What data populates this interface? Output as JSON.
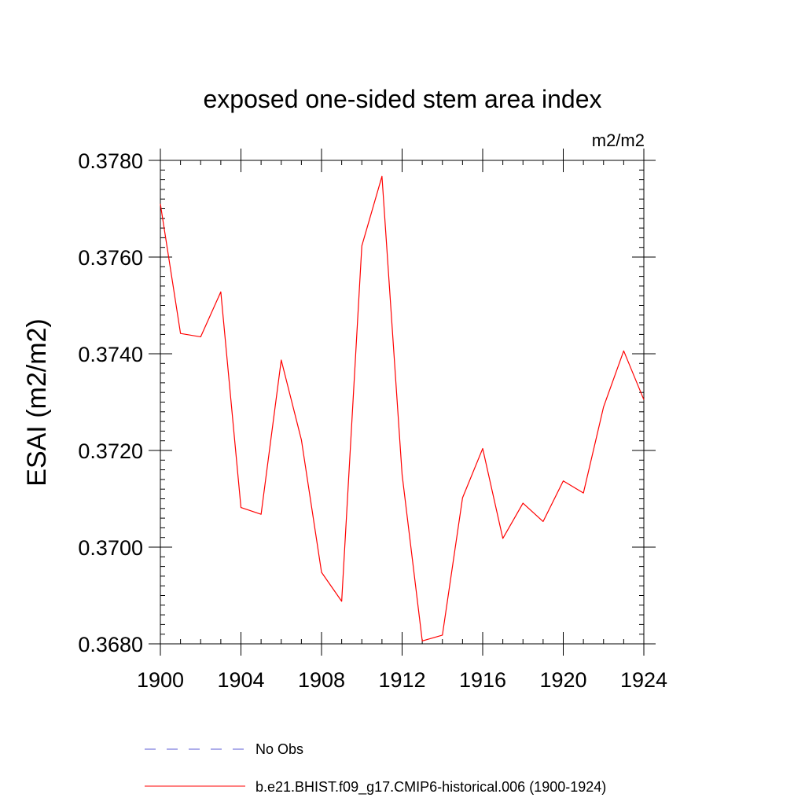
{
  "chart_data": {
    "type": "line",
    "title": "exposed one-sided stem area index",
    "units_label": "m2/m2",
    "ylabel": "ESAI  (m2/m2)",
    "xlabel": "",
    "xlim": [
      1900,
      1924
    ],
    "ylim": [
      0.368,
      0.378
    ],
    "x_ticks": [
      1900,
      1904,
      1908,
      1912,
      1916,
      1920,
      1924
    ],
    "y_ticks": [
      0.368,
      0.37,
      0.372,
      0.374,
      0.376,
      0.378
    ],
    "x_tick_labels": [
      "1900",
      "1904",
      "1908",
      "1912",
      "1916",
      "1920",
      "1924"
    ],
    "y_tick_labels": [
      "0.3680",
      "0.3700",
      "0.3720",
      "0.3740",
      "0.3760",
      "0.3780"
    ],
    "x_minor_step": 1,
    "y_minor_step": 0.0002,
    "series": [
      {
        "name": "b.e21.BHIST.f09_g17.CMIP6-historical.006 (1900-1924)",
        "color": "#ff0000",
        "style": "solid",
        "x": [
          1900,
          1901,
          1902,
          1903,
          1904,
          1905,
          1906,
          1907,
          1908,
          1909,
          1910,
          1911,
          1912,
          1913,
          1914,
          1915,
          1916,
          1917,
          1918,
          1919,
          1920,
          1921,
          1922,
          1923,
          1924
        ],
        "values": [
          0.3771,
          0.37442,
          0.37435,
          0.37528,
          0.37082,
          0.37068,
          0.37387,
          0.37222,
          0.36948,
          0.36888,
          0.37623,
          0.37767,
          0.3715,
          0.36806,
          0.36818,
          0.37102,
          0.37204,
          0.37018,
          0.37091,
          0.37053,
          0.37137,
          0.37112,
          0.3729,
          0.37406,
          0.37305
        ]
      }
    ],
    "legend": [
      {
        "label": "No Obs",
        "color": "#5b5bd6",
        "style": "dashed"
      },
      {
        "label": "b.e21.BHIST.f09_g17.CMIP6-historical.006 (1900-1924)",
        "color": "#ff0000",
        "style": "solid"
      }
    ],
    "legend_position": "bottom-left"
  }
}
